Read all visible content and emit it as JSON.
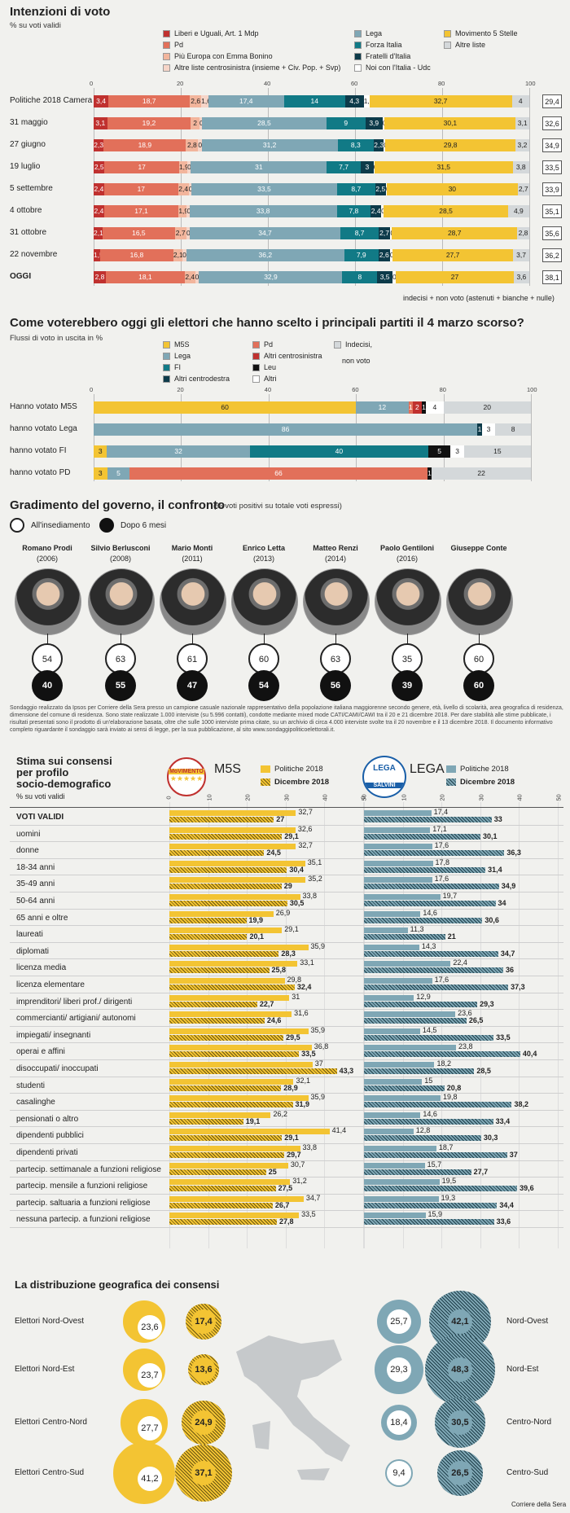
{
  "s1": {
    "title": "Intenzioni di voto",
    "subtitle": "% su voti validi",
    "legend": [
      {
        "label": "Liberi e Uguali, Art. 1 Mdp",
        "color": "#c0312f"
      },
      {
        "label": "Pd",
        "color": "#e2705a"
      },
      {
        "label": "Più Europa con Emma Bonino",
        "color": "#f2b59c"
      },
      {
        "label": "Altre liste centrosinistra (insieme + Civ. Pop. + Svp)",
        "color": "#f6d5c8"
      },
      {
        "label": "Lega",
        "color": "#7fa7b5"
      },
      {
        "label": "Forza Italia",
        "color": "#117a86"
      },
      {
        "label": "Fratelli d'Italia",
        "color": "#0d3b4a"
      },
      {
        "label": "Noi con l'Italia - Udc",
        "color": "#ffffff"
      },
      {
        "label": "Movimento 5 Stelle",
        "color": "#f3c433"
      },
      {
        "label": "Altre liste",
        "color": "#d4d8da"
      }
    ],
    "ticks": [
      "0",
      "20",
      "40",
      "60",
      "80",
      "100"
    ],
    "footnote": "indecisi + non voto (astenuti + bianche + nulle)"
  },
  "chart_data": [
    {
      "type": "bar",
      "title": "Intenzioni di voto",
      "subtitle": "% su voti validi",
      "stacked": true,
      "categories": [
        "Politiche 2018 Camera",
        "31 maggio",
        "27 giugno",
        "19 luglio",
        "5 settembre",
        "4 ottobre",
        "31 ottobre",
        "22 novembre",
        "OGGI"
      ],
      "series": [
        {
          "name": "Liberi e Uguali, Art. 1 Mdp",
          "color": "#c0312f",
          "values": [
            3.4,
            3.1,
            2.3,
            2.5,
            2.4,
            2.4,
            2.1,
            1.5,
            2.8
          ]
        },
        {
          "name": "Pd",
          "color": "#e2705a",
          "values": [
            18.7,
            19.2,
            18.9,
            17,
            17,
            17.1,
            16.5,
            16.8,
            18.1
          ]
        },
        {
          "name": "Più Europa con Emma Bonino",
          "color": "#f2b59c",
          "values": [
            2.6,
            2,
            2.8,
            1.9,
            2.4,
            1.9,
            2.7,
            2.1,
            2.4
          ]
        },
        {
          "name": "Altre liste centrosinistra (insieme + Civ. Pop. + Svp)",
          "color": "#f6d5c8",
          "values": [
            1.6,
            0.6,
            0.8,
            0.8,
            0.6,
            0.6,
            0.7,
            0.9,
            0.9
          ]
        },
        {
          "name": "Lega",
          "color": "#7fa7b5",
          "values": [
            17.4,
            28.5,
            31.2,
            31,
            33.5,
            33.8,
            34.7,
            36.2,
            32.9
          ]
        },
        {
          "name": "Forza Italia",
          "color": "#117a86",
          "values": [
            14,
            9.0,
            8.3,
            7.7,
            8.7,
            7.8,
            8.7,
            7.9,
            8
          ]
        },
        {
          "name": "Fratelli d'Italia",
          "color": "#0d3b4a",
          "values": [
            4.3,
            3.9,
            2.3,
            3,
            2.5,
            2.4,
            2.7,
            2.6,
            3.5
          ]
        },
        {
          "name": "Noi con l'Italia - Udc",
          "color": "#ffffff",
          "values": [
            1.3,
            0.5,
            0.4,
            0.2,
            0.2,
            0.6,
            0.4,
            0.6,
            0.8
          ]
        },
        {
          "name": "Movimento 5 Stelle",
          "color": "#f3c433",
          "values": [
            32.7,
            30.1,
            29.8,
            31.5,
            30,
            28.5,
            28.7,
            27.7,
            27
          ]
        },
        {
          "name": "Altre liste",
          "color": "#d4d8da",
          "values": [
            4,
            3.1,
            3.2,
            3.8,
            2.7,
            4.9,
            2.8,
            3.7,
            3.6
          ]
        }
      ],
      "side_values": [
        "29,4",
        "32,6",
        "34,9",
        "33,5",
        "33,9",
        "35,1",
        "35,6",
        "36,2",
        "38,1"
      ],
      "xlim": [
        0,
        100
      ]
    },
    {
      "type": "bar",
      "title": "Come voterebbero oggi gli elettori che hanno scelto i principali partiti il 4 marzo scorso?",
      "subtitle": "Flussi di voto in uscita in %",
      "stacked": true,
      "categories": [
        "Hanno votato M5S",
        "hanno votato Lega",
        "hanno votato FI",
        "hanno votato PD"
      ],
      "series": [
        {
          "name": "M5S",
          "color": "#f3c433",
          "values": [
            60,
            0,
            3,
            3
          ]
        },
        {
          "name": "Lega",
          "color": "#7fa7b5",
          "values": [
            12,
            86,
            32,
            5
          ]
        },
        {
          "name": "FI",
          "color": "#117a86",
          "values": [
            0,
            0,
            40,
            0
          ]
        },
        {
          "name": "Altri centrodestra",
          "color": "#0d3b4a",
          "values": [
            0,
            1,
            0,
            0
          ]
        },
        {
          "name": "Pd",
          "color": "#e2705a",
          "values": [
            1,
            0,
            0,
            66
          ]
        },
        {
          "name": "Altri centrosinistra",
          "color": "#c0312f",
          "values": [
            2,
            0,
            0,
            0
          ]
        },
        {
          "name": "Leu",
          "color": "#111111",
          "values": [
            1,
            0,
            5,
            1
          ]
        },
        {
          "name": "Altri",
          "color": "#ffffff",
          "values": [
            4,
            3,
            3,
            0
          ]
        },
        {
          "name": "Indecisi, non voto",
          "color": "#d4d8da",
          "values": [
            20,
            8,
            15,
            22
          ]
        }
      ],
      "xlim": [
        0,
        100
      ]
    },
    {
      "type": "bar",
      "title": "Stima sui consensi per profilo socio-demografico",
      "subtitle": "% su voti validi",
      "categories": [
        "VOTI VALIDI",
        "uomini",
        "donne",
        "18-34 anni",
        "35-49 anni",
        "50-64 anni",
        "65 anni e oltre",
        "laureati",
        "diplomati",
        "licenza media",
        "licenza elementare",
        "imprenditori/ liberi prof./ dirigenti",
        "commercianti/ artigiani/ autonomi",
        "impiegati/ insegnanti",
        "operai e affini",
        "disoccupati/ inoccupati",
        "studenti",
        "casalinghe",
        "pensionati o altro",
        "dipendenti pubblici",
        "dipendenti privati",
        "partecip. settimanale a funzioni religiose",
        "partecip. mensile a funzioni religiose",
        "partecip. saltuaria a funzioni religiose",
        "nessuna partecip. a funzioni religiose"
      ],
      "series": [
        {
          "name": "M5S Politiche 2018",
          "values": [
            32.7,
            32.6,
            32.7,
            35.1,
            35.2,
            33.8,
            26.9,
            29.1,
            35.9,
            33.1,
            29.8,
            31,
            31.6,
            35.9,
            36.8,
            37,
            32.1,
            35.9,
            26.2,
            41.4,
            33.8,
            30.7,
            31.2,
            34.7,
            33.5
          ]
        },
        {
          "name": "M5S Dicembre 2018",
          "values": [
            27,
            29.1,
            24.5,
            30.4,
            29,
            30.5,
            19.9,
            20.1,
            28.3,
            25.8,
            32.4,
            22.7,
            24.6,
            29.5,
            33.5,
            43.3,
            28.9,
            31.9,
            19.1,
            29.1,
            29.7,
            25,
            27.5,
            26.7,
            27.8
          ]
        },
        {
          "name": "LEGA Politiche 2018",
          "values": [
            17.4,
            17.1,
            17.6,
            17.8,
            17.6,
            19.7,
            14.6,
            11.3,
            14.3,
            22.4,
            17.6,
            12.9,
            23.6,
            14.5,
            23.8,
            18.2,
            15,
            19.8,
            14.6,
            12.8,
            18.7,
            15.7,
            19.5,
            19.3,
            15.9
          ]
        },
        {
          "name": "LEGA Dicembre 2018",
          "values": [
            33,
            30.1,
            36.3,
            31.4,
            34.9,
            34,
            30.6,
            21,
            34.7,
            36,
            37.3,
            29.3,
            26.5,
            33.5,
            40.4,
            28.5,
            20.8,
            38.2,
            33.4,
            30.3,
            37,
            27.7,
            39.6,
            34.4,
            33.6
          ]
        }
      ],
      "xlim": [
        0,
        50
      ]
    }
  ],
  "s2": {
    "title": "Come voterebbero oggi gli elettori che hanno scelto i principali partiti il 4 marzo scorso?",
    "subtitle": "Flussi di voto in uscita in %",
    "legend": [
      {
        "label": "M5S",
        "color": "#f3c433"
      },
      {
        "label": "Lega",
        "color": "#7fa7b5"
      },
      {
        "label": "FI",
        "color": "#117a86"
      },
      {
        "label": "Altri centrodestra",
        "color": "#0d3b4a"
      },
      {
        "label": "Pd",
        "color": "#e2705a"
      },
      {
        "label": "Altri centrosinistra",
        "color": "#c0312f"
      },
      {
        "label": "Leu",
        "color": "#111111"
      },
      {
        "label": "Altri",
        "color": "#ffffff"
      },
      {
        "label": "Indecisi,",
        "color": "#d4d8da"
      }
    ],
    "legend_extra": "non voto",
    "ticks": [
      "0",
      "20",
      "40",
      "60",
      "80",
      "100"
    ]
  },
  "s3": {
    "title": "Gradimento del governo, il confronto",
    "subtitle": "(% voti positivi su totale voti espressi)",
    "legend_start": "All'insediamento",
    "legend_end": "Dopo 6 mesi",
    "pms": [
      {
        "name": "Romano Prodi",
        "year": "(2006)",
        "start": "54",
        "end": "40"
      },
      {
        "name": "Silvio Berlusconi",
        "year": "(2008)",
        "start": "63",
        "end": "55"
      },
      {
        "name": "Mario Monti",
        "year": "(2011)",
        "start": "61",
        "end": "47"
      },
      {
        "name": "Enrico Letta",
        "year": "(2013)",
        "start": "60",
        "end": "54"
      },
      {
        "name": "Matteo Renzi",
        "year": "(2014)",
        "start": "63",
        "end": "56"
      },
      {
        "name": "Paolo Gentiloni",
        "year": "(2016)",
        "start": "35",
        "end": "39"
      },
      {
        "name": "Giuseppe Conte",
        "year": "",
        "start": "60",
        "end": "60"
      }
    ],
    "note": "Sondaggio realizzato da Ipsos per Corriere della Sera presso un campione casuale nazionale rappresentativo della popolazione italiana maggiorenne secondo genere, età, livello di scolarità, area geografica di residenza, dimensione del comune di residenza. Sono state realizzate 1.000 interviste (su 5.996 contatti), condotte mediante mixed mode CATI/CAMI/CAWI tra il 20 e 21 dicembre 2018. Per dare stabilità alle stime pubblicate, i risultati presentati sono il prodotto di un'elaborazione basata, oltre che sulle 1000 interviste prima citate, su un archivio di circa 4.000 interviste svolte tra il 20 novembre e il 13 dicembre 2018. Il documento informativo completo riguardante il sondaggio sarà inviato ai sensi di legge, per la sua pubblicazione, al sito www.sondaggipoliticoelettorali.it."
  },
  "s4": {
    "title_lines": [
      "Stima sui consensi",
      "per profilo",
      "socio-demografico"
    ],
    "subtitle": "% su voti validi",
    "m5s_logo_text": "MoVIMENTO",
    "m5s": "M5S",
    "lega_logo_top": "LEGA",
    "lega_logo_bottom": "SALVINI",
    "lega": "LEGA",
    "leg_2018": "Politiche 2018",
    "leg_dec": "Dicembre 2018",
    "ticks": [
      "0",
      "10",
      "20",
      "30",
      "40",
      "50"
    ],
    "m5s_2018_labels": [
      "32,7",
      "32,6",
      "32,7",
      "35,1",
      "35,2",
      "33,8",
      "26,9",
      "29,1",
      "35,9",
      "33,1",
      "29,8",
      "31",
      "31,6",
      "35,9",
      "36,8",
      "37",
      "32,1",
      "35,9",
      "26,2",
      "41,4",
      "33,8",
      "30,7",
      "31,2",
      "34,7",
      "33,5"
    ],
    "m5s_dec_labels": [
      "27",
      "29,1",
      "24,5",
      "30,4",
      "29",
      "30,5",
      "19,9",
      "20,1",
      "28,3",
      "25,8",
      "32,4",
      "22,7",
      "24,6",
      "29,5",
      "33,5",
      "43,3",
      "28,9",
      "31,9",
      "19,1",
      "29,1",
      "29,7",
      "25",
      "27,5",
      "26,7",
      "27,8"
    ],
    "lega_2018_labels": [
      "17,4",
      "17,1",
      "17,6",
      "17,8",
      "17,6",
      "19,7",
      "14,6",
      "11,3",
      "14,3",
      "22,4",
      "17,6",
      "12,9",
      "23,6",
      "14,5",
      "23,8",
      "18,2",
      "15",
      "19,8",
      "14,6",
      "12,8",
      "18,7",
      "15,7",
      "19,5",
      "19,3",
      "15,9"
    ],
    "lega_dec_labels": [
      "33",
      "30,1",
      "36,3",
      "31,4",
      "34,9",
      "34",
      "30,6",
      "21",
      "34,7",
      "36",
      "37,3",
      "29,3",
      "26,5",
      "33,5",
      "40,4",
      "28,5",
      "20,8",
      "38,2",
      "33,4",
      "30,3",
      "37",
      "27,7",
      "39,6",
      "34,4",
      "33,6"
    ]
  },
  "s5": {
    "title": "La distribuzione geografica dei consensi",
    "rows": [
      {
        "left_label": "Elettori Nord-Ovest",
        "right_label": "Nord-Ovest",
        "m5s_2018": "23,6",
        "m5s_dec": "17,4",
        "lega_2018": "25,7",
        "lega_dec": "42,1"
      },
      {
        "left_label": "Elettori Nord-Est",
        "right_label": "Nord-Est",
        "m5s_2018": "23,7",
        "m5s_dec": "13,6",
        "lega_2018": "29,3",
        "lega_dec": "48,3"
      },
      {
        "left_label": "Elettori Centro-Nord",
        "right_label": "Centro-Nord",
        "m5s_2018": "27,7",
        "m5s_dec": "24,9",
        "lega_2018": "18,4",
        "lega_dec": "30,5"
      },
      {
        "left_label": "Elettori Centro-Sud",
        "right_label": "Centro-Sud",
        "m5s_2018": "41,2",
        "m5s_dec": "37,1",
        "lega_2018": "9,4",
        "lega_dec": "26,5"
      }
    ],
    "credit": "Corriere della Sera"
  }
}
